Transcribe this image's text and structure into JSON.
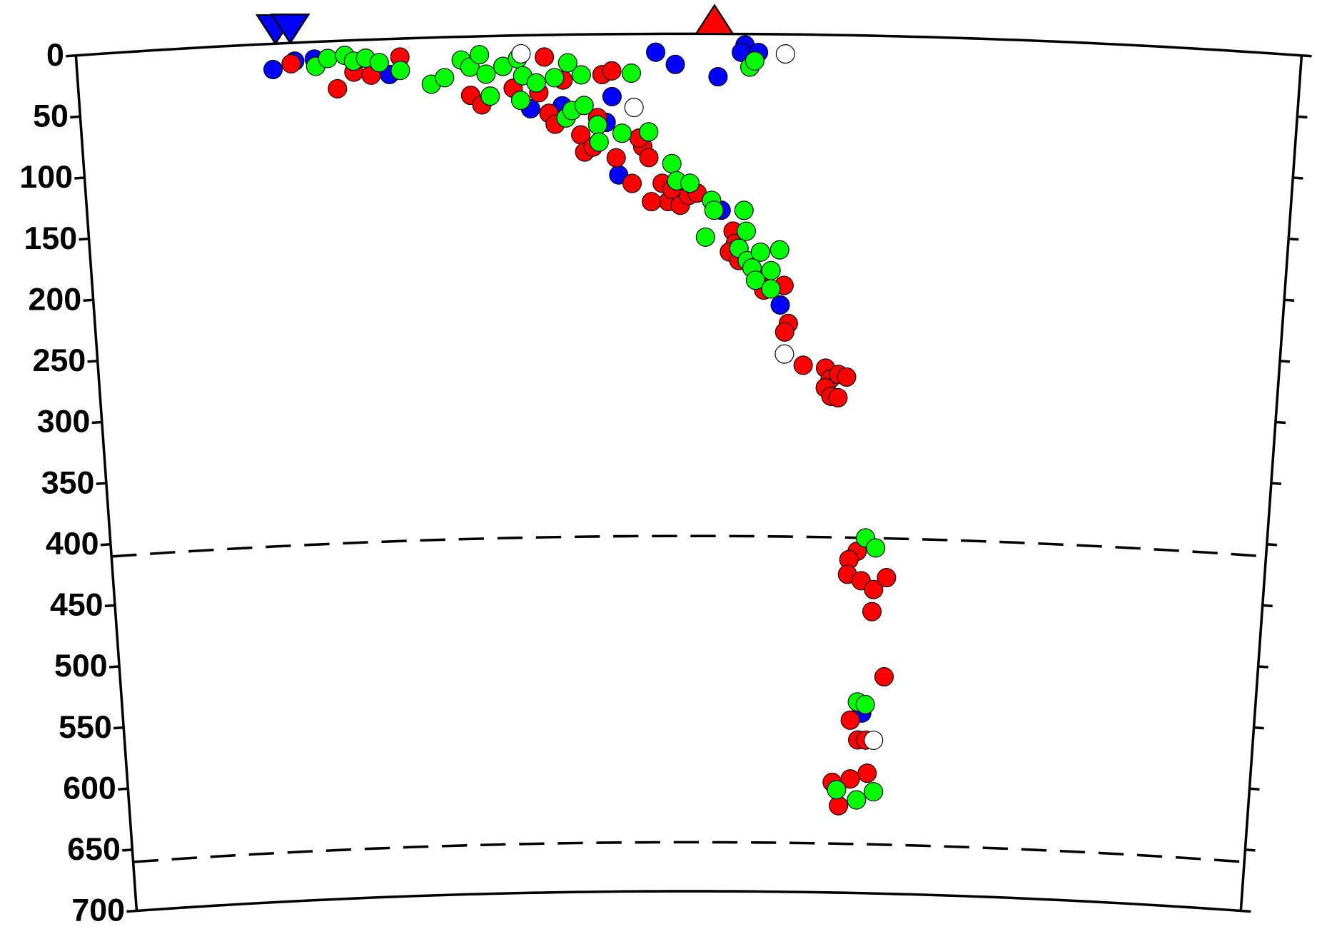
{
  "chart_data": {
    "type": "scatter",
    "xlim": [
      0,
      1000
    ],
    "ylim": [
      0,
      700
    ],
    "yticks": [
      0,
      50,
      100,
      150,
      200,
      250,
      300,
      350,
      400,
      450,
      500,
      550,
      600,
      650,
      700
    ],
    "y_inverted": true,
    "reference_depths": [
      410,
      660
    ],
    "symbols": [
      {
        "shape": "inverted-triangle",
        "color": "#0000ff",
        "x": 163
      },
      {
        "shape": "inverted-triangle",
        "color": "#0000ff",
        "x": 175
      },
      {
        "shape": "triangle",
        "color": "#ff0000",
        "x": 521
      }
    ],
    "series": [
      {
        "color": "#0000ff",
        "x": [
          160,
          178,
          194,
          255,
          370,
          396,
          437,
          432,
          442,
          473,
          489,
          524,
          546,
          543,
          557,
          577,
          527,
          653
        ],
        "values": [
          21,
          15,
          14,
          29,
          60,
          58,
          51,
          72,
          115,
          15,
          25,
          35,
          9,
          15,
          15,
          221,
          144,
          553
        ]
      },
      {
        "color": "#ff0000",
        "x": [
          175,
          212,
          226,
          240,
          264,
          321,
          330,
          356,
          377,
          382,
          385,
          390,
          397,
          411,
          414,
          421,
          425,
          429,
          437,
          440,
          453,
          462,
          467,
          459,
          478,
          483,
          486,
          469,
          493,
          500,
          507,
          537,
          539,
          534,
          542,
          560,
          580,
          563,
          584,
          581,
          597,
          616,
          620,
          627,
          634,
          616,
          621,
          627,
          646,
          639,
          638,
          650,
          661,
          672,
          660,
          672,
          643,
          650,
          657,
          628,
          644,
          659,
          634
        ],
        "values": [
          17,
          39,
          26,
          29,
          15,
          48,
          56,
          43,
          47,
          18,
          64,
          73,
          37,
          82,
          96,
          92,
          68,
          33,
          30,
          101,
          122,
          92,
          101,
          85,
          122,
          137,
          127,
          137,
          140,
          132,
          130,
          161,
          171,
          178,
          185,
          199,
          205,
          209,
          236,
          243,
          270,
          272,
          281,
          277,
          279,
          288,
          295,
          296,
          421,
          428,
          440,
          445,
          452,
          442,
          470,
          523,
          559,
          575,
          575,
          610,
          607,
          602,
          629
        ]
      },
      {
        "color": "#00ff00",
        "x": [
          195,
          205,
          219,
          226,
          236,
          247,
          264,
          289,
          300,
          314,
          321,
          329,
          334,
          337,
          348,
          360,
          362,
          364,
          375,
          390,
          401,
          399,
          404,
          414,
          412,
          425,
          426,
          445,
          453,
          467,
          486,
          490,
          501,
          519,
          521,
          514,
          546,
          548,
          542,
          549,
          560,
          569,
          576,
          553,
          556,
          569,
          550,
          554,
          653,
          662,
          649,
          656,
          632,
          650,
          665
        ],
        "values": [
          20,
          14,
          12,
          17,
          15,
          19,
          26,
          38,
          33,
          19,
          25,
          15,
          31,
          49,
          25,
          19,
          53,
          33,
          39,
          35,
          23,
          68,
          62,
          58,
          33,
          74,
          88,
          81,
          32,
          80,
          106,
          120,
          122,
          136,
          144,
          166,
          144,
          161,
          175,
          185,
          178,
          193,
          176,
          191,
          201,
          208,
          27,
          22,
          410,
          418,
          544,
          546,
          616,
          624,
          617
        ]
      },
      {
        "color": "#ffffff",
        "x": [
          363,
          455,
          579,
          581,
          664
        ],
        "values": [
          15,
          60,
          16,
          261,
          575
        ]
      }
    ]
  }
}
